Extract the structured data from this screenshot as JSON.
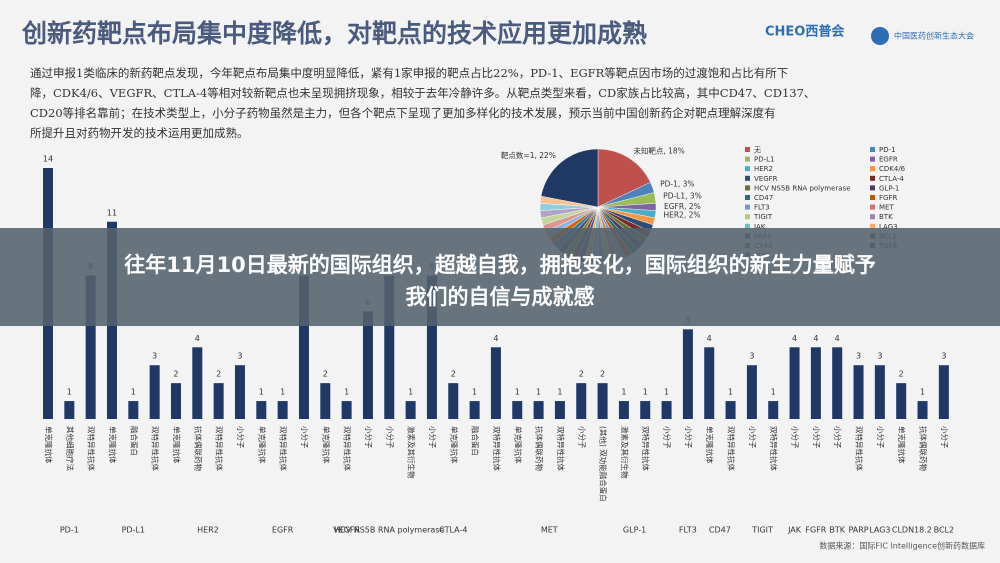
{
  "header": {
    "title": "创新药靶点布局集中度降低，对靶点的技术应用更加成熟",
    "logos": [
      "CHEO西普会",
      "中国医药创新生态大会"
    ],
    "paragraph": [
      "通过申报1类临床的新药靶点发现，今年靶点布局集中度明显降低，紧有1家申报的靶点占比22%，PD-1、EGFR等靶点因市场的过渡饱和占比有所下",
      "降，CDK4/6、VEGFR、CTLA-4等相对较新靶点也未呈现拥挤现象，相较于去年冷静许多。从靶点类型来看，CD家族占比较高，其中CD47、CD137、",
      "CD20等排名靠前；在技术类型上，小分子药物虽然是主力，但各个靶点下呈现了更加多样化的技术发展，预示当前中国创新药企对靶点理解深度有",
      "所提升且对药物开发的技术运用更加成熟。"
    ]
  },
  "banner": [
    "往年11月10日最新的国际组织，超越自我，拥抱变化，国际组织的新生力量赋予",
    "我们的自信与成就感"
  ],
  "source": "数据来源：国际FIC Intelligence创新药数据库",
  "chart_data": [
    {
      "type": "bar",
      "color": "#1f3864",
      "ylim": [
        0,
        14
      ],
      "groups": [
        {
          "label": "PD-1",
          "categories": [
            "单克隆抗体",
            "其他细胞疗法",
            "双特异性抗体"
          ],
          "values": [
            14,
            1,
            8
          ]
        },
        {
          "label": "PD-L1",
          "categories": [
            "单克隆抗体",
            "融合蛋白",
            "双特异性抗体"
          ],
          "values": [
            11,
            1,
            3
          ]
        },
        {
          "label": "HER2",
          "categories": [
            "单克隆抗体",
            "抗体偶联药物",
            "双特异性抗体",
            "小分子"
          ],
          "values": [
            2,
            4,
            2,
            3
          ]
        },
        {
          "label": "EGFR",
          "categories": [
            "单克隆抗体",
            "双特异性抗体",
            "小分子"
          ],
          "values": [
            1,
            1,
            8
          ]
        },
        {
          "label": "VEGFR",
          "categories": [
            "单克隆抗体",
            "双特异性抗体",
            "小分子"
          ],
          "values": [
            2,
            1,
            6
          ]
        },
        {
          "label": "HCV NS5B RNA polymerase",
          "categories": [
            "小分子"
          ],
          "values": [
            8
          ]
        },
        {
          "label": "CTLA-4",
          "categories": [
            "激素及其衍生物",
            "小分子",
            "单克隆抗体",
            "融合蛋白",
            "双特异性抗体"
          ],
          "values": [
            1,
            8,
            2,
            1,
            4
          ]
        },
        {
          "label": "MET",
          "categories": [
            "单克隆抗体",
            "抗体偶联药物",
            "双特异性抗体",
            "小分子"
          ],
          "values": [
            1,
            1,
            1,
            2
          ]
        },
        {
          "label": "GLP-1",
          "categories": [
            "(其他) 双功能融合蛋白",
            "激素及其衍生物",
            "双特异性抗体",
            "小分子"
          ],
          "values": [
            2,
            1,
            1,
            1
          ]
        },
        {
          "label": "FLT3",
          "categories": [
            "小分子"
          ],
          "values": [
            5
          ]
        },
        {
          "label": "CD47",
          "categories": [
            "单克隆抗体",
            "双特异性抗体"
          ],
          "values": [
            4,
            1
          ]
        },
        {
          "label": "TIGIT",
          "categories": [
            "小分子",
            "双特异性抗体"
          ],
          "values": [
            3,
            1
          ]
        },
        {
          "label": "JAK",
          "categories": [
            "小分子"
          ],
          "values": [
            4
          ]
        },
        {
          "label": "FGFR",
          "categories": [
            "小分子"
          ],
          "values": [
            4
          ]
        },
        {
          "label": "BTK",
          "categories": [
            "小分子"
          ],
          "values": [
            4
          ]
        },
        {
          "label": "PARP",
          "categories": [
            "双特异性抗体"
          ],
          "values": [
            3
          ]
        },
        {
          "label": "LAG3",
          "categories": [
            "小分子"
          ],
          "values": [
            3
          ]
        },
        {
          "label": "CLDN18.2",
          "categories": [
            "单克隆抗体",
            "抗体偶联药物"
          ],
          "values": [
            2,
            1
          ]
        },
        {
          "label": "BCL2",
          "categories": [
            "小分子"
          ],
          "values": [
            3
          ]
        }
      ]
    },
    {
      "type": "pie",
      "values": [
        18,
        3,
        3,
        2,
        2,
        2,
        2,
        2,
        2,
        2,
        2,
        2,
        2,
        2,
        2,
        2,
        2,
        2,
        2,
        2,
        2,
        2,
        2,
        2,
        2,
        2,
        2,
        2,
        2,
        2,
        22
      ],
      "value_labels": [
        "未知靶点, 18%",
        "PD-1, 3%",
        "PD-L1, 3%",
        "EGFR, 2%",
        "HER2, 2%",
        null,
        null,
        null,
        null,
        null,
        null,
        null,
        null,
        null,
        null,
        null,
        null,
        null,
        null,
        null,
        null,
        null,
        null,
        null,
        null,
        null,
        null,
        null,
        null,
        null,
        "靶点数=1, 22%"
      ],
      "colors": [
        "#c0504d",
        "#4f81bd",
        "#9bbb59",
        "#8064a2",
        "#4bacc6",
        "#f79646",
        "#2c4d75",
        "#772c2a",
        "#5f7530",
        "#4d3b62",
        "#276a7c",
        "#b65708",
        "#729aca",
        "#cd7371",
        "#afc97a",
        "#9983b5",
        "#6fbdd1",
        "#f9ab6b",
        "#3a5a88",
        "#8c3836",
        "#6f8c38",
        "#5c4776",
        "#2e7d93",
        "#d06609",
        "#95b3d7",
        "#d99694",
        "#c3d69b",
        "#b3a2c7",
        "#93cddd",
        "#fac090",
        "#1f3864"
      ]
    },
    {
      "type": "legend",
      "items": [
        {
          "name": "无",
          "color": "#c0504d"
        },
        {
          "name": "PD-1",
          "color": "#4f81bd"
        },
        {
          "name": "PD-L1",
          "color": "#9bbb59"
        },
        {
          "name": "EGFR",
          "color": "#8064a2"
        },
        {
          "name": "HER2",
          "color": "#4bacc6"
        },
        {
          "name": "CDK4/6",
          "color": "#f79646"
        },
        {
          "name": "VEGFR",
          "color": "#2c4d75"
        },
        {
          "name": "CTLA-4",
          "color": "#772c2a"
        },
        {
          "name": "HCV NS5B RNA polymerase",
          "color": "#5f7530"
        },
        {
          "name": "GLP-1",
          "color": "#4d3b62"
        },
        {
          "name": "CD47",
          "color": "#276a7c"
        },
        {
          "name": "FGFR",
          "color": "#b65708"
        },
        {
          "name": "FLT3",
          "color": "#729aca"
        },
        {
          "name": "MET",
          "color": "#cd7371"
        },
        {
          "name": "TIGIT",
          "color": "#afc97a"
        },
        {
          "name": "BTK",
          "color": "#9983b5"
        },
        {
          "name": "JAK",
          "color": "#6fbdd1"
        },
        {
          "name": "LAG3",
          "color": "#f9ab6b"
        },
        {
          "name": "PARP",
          "color": "#3a5a88"
        },
        {
          "name": "BCL2",
          "color": "#8c3836"
        },
        {
          "name": "CX40",
          "color": "#6f8c38"
        },
        {
          "name": "TGFβ",
          "color": "#5c4776"
        },
        {
          "name": "PI3K",
          "color": "#2e7d93"
        }
      ]
    }
  ]
}
